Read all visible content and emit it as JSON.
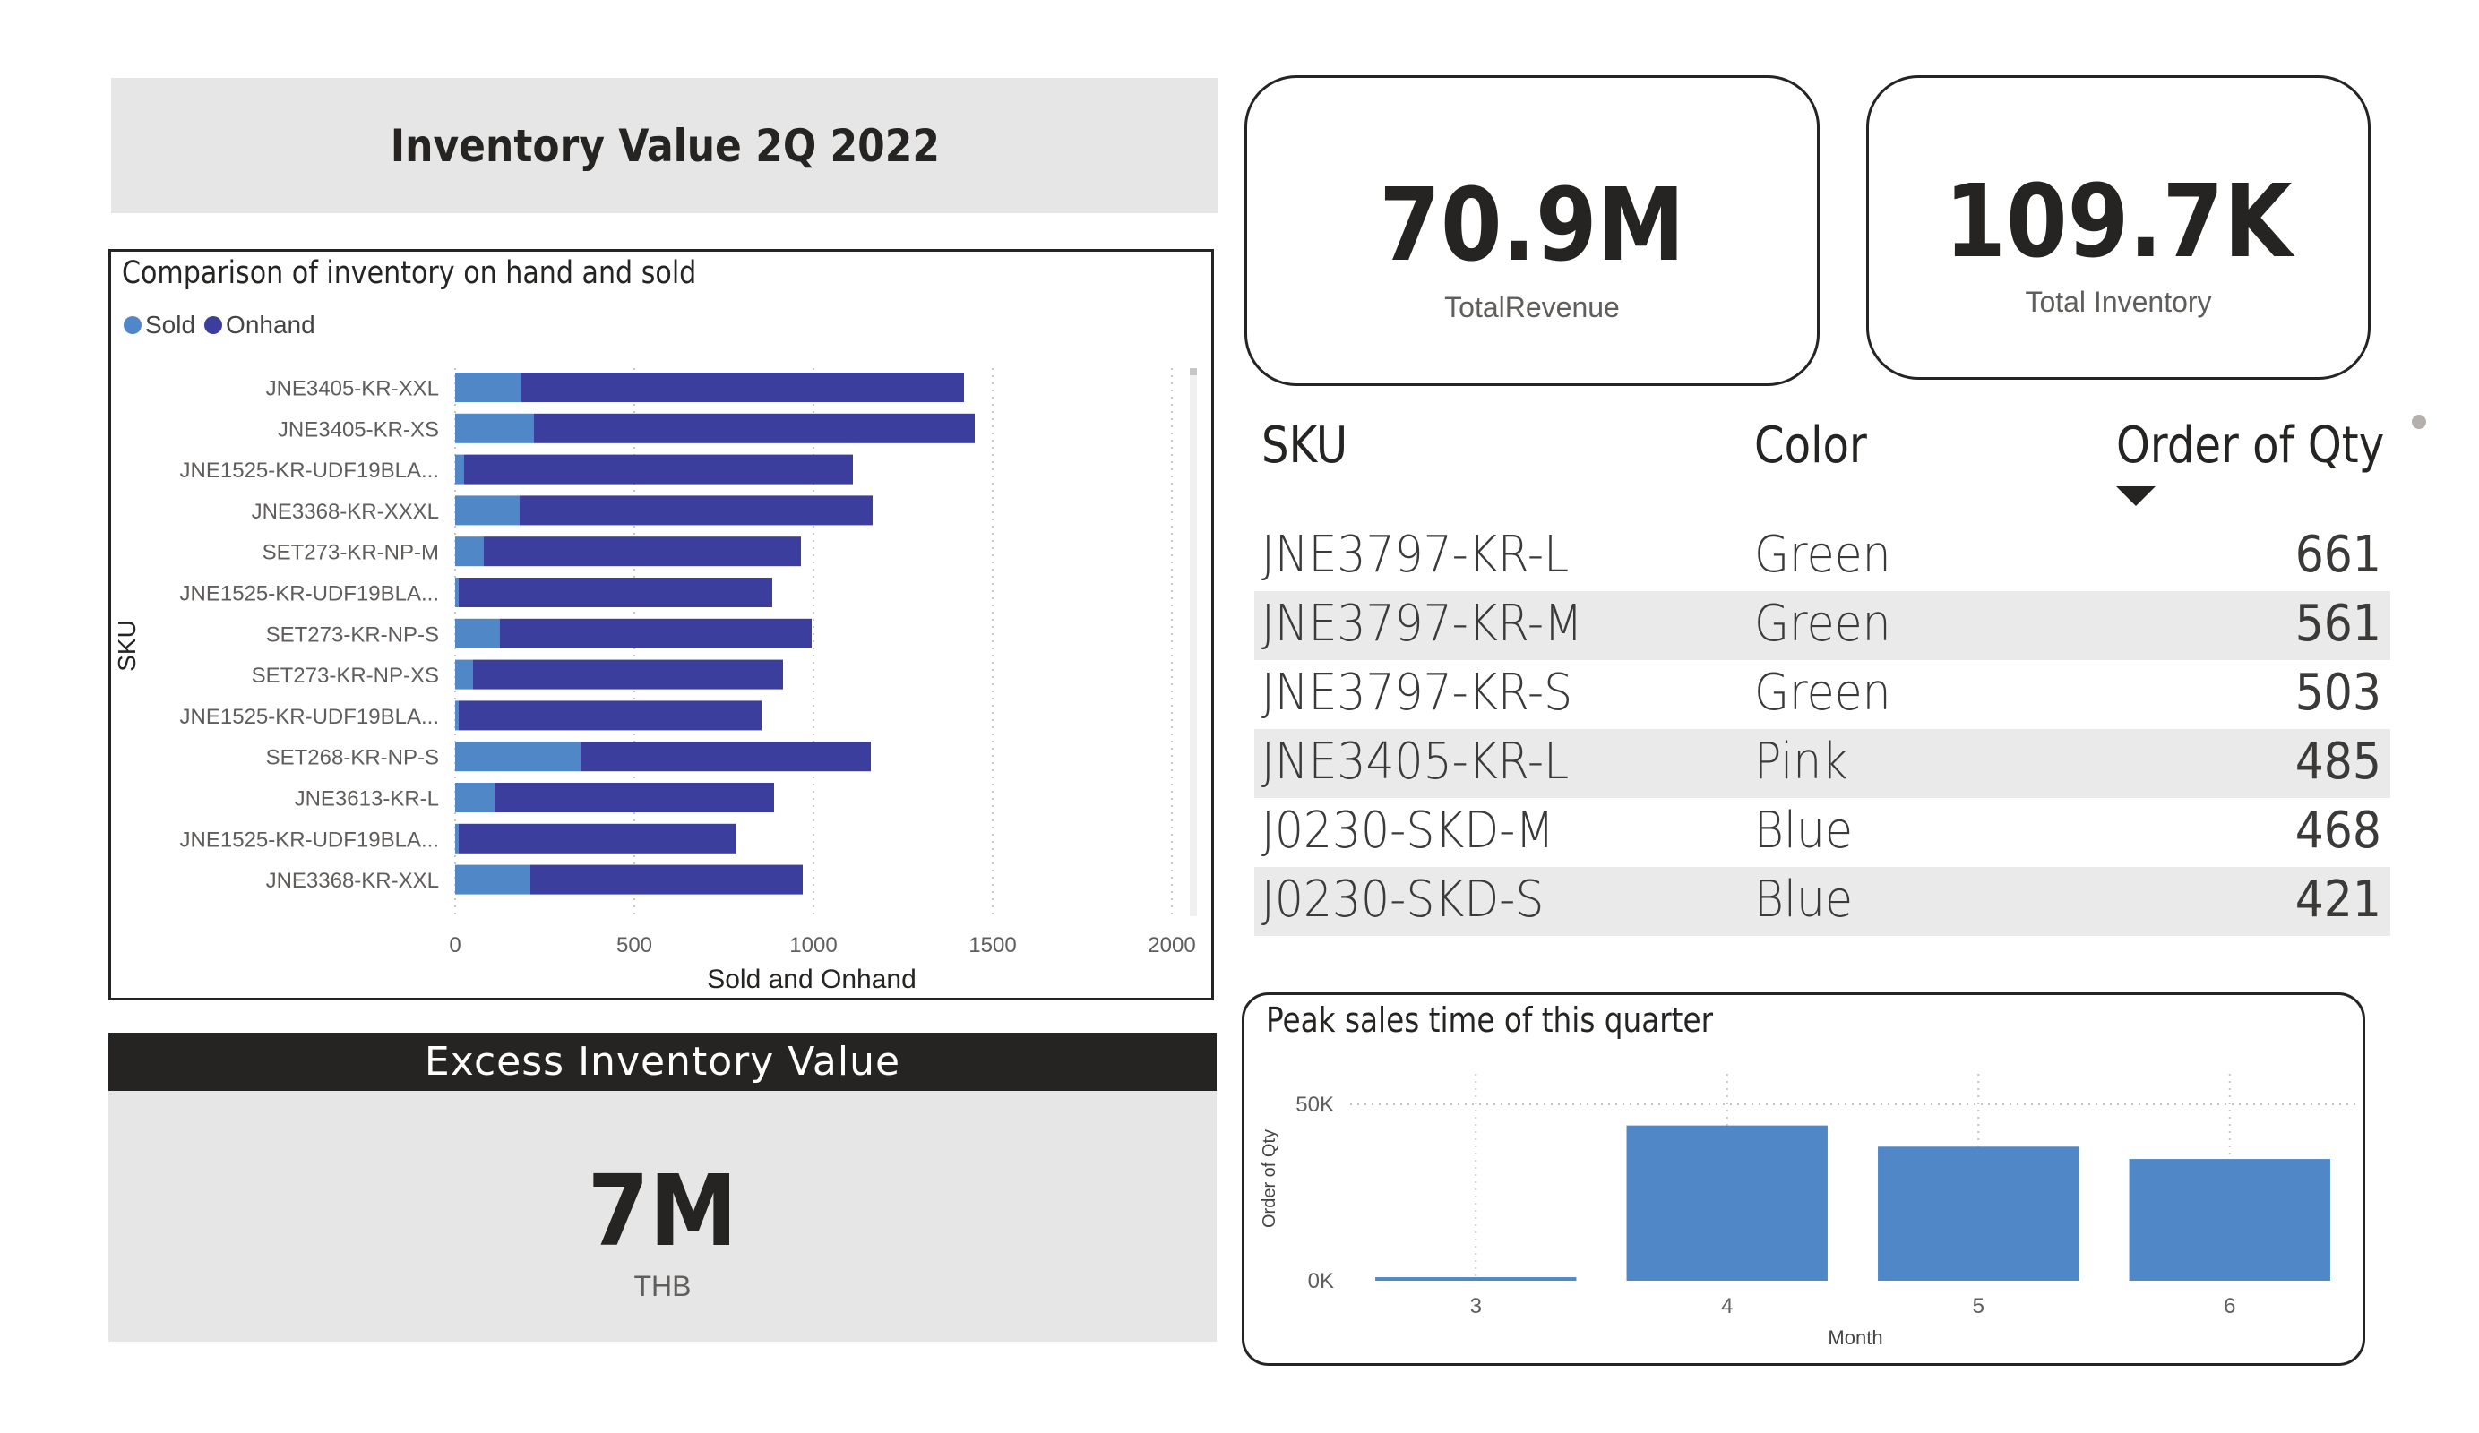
{
  "page_title": "Inventory Value 2Q 2022",
  "inventory_chart": {
    "title": "Comparison of inventory on hand and sold",
    "legend": [
      {
        "name": "Sold",
        "color": "#5087c7"
      },
      {
        "name": "Onhand",
        "color": "#3b3e9c"
      }
    ],
    "ylabel": "SKU",
    "xlabel": "Sold and Onhand",
    "x_ticks": [
      "0",
      "500",
      "1000",
      "1500",
      "2000"
    ]
  },
  "chart_data": [
    {
      "type": "bar",
      "orientation": "horizontal",
      "stacked": true,
      "title": "Comparison of inventory on hand and sold",
      "xlabel": "Sold and Onhand",
      "ylabel": "SKU",
      "xlim": [
        0,
        2000
      ],
      "legend_position": "top-left",
      "categories": [
        "JNE3405-KR-XXL",
        "JNE3405-KR-XS",
        "JNE1525-KR-UDF19BLA...",
        "JNE3368-KR-XXXL",
        "SET273-KR-NP-M",
        "JNE1525-KR-UDF19BLA...",
        "SET273-KR-NP-S",
        "SET273-KR-NP-XS",
        "JNE1525-KR-UDF19BLA...",
        "SET268-KR-NP-S",
        "JNE3613-KR-L",
        "JNE1525-KR-UDF19BLA...",
        "JNE3368-KR-XXL"
      ],
      "series": [
        {
          "name": "Sold",
          "color": "#5087c7",
          "values": [
            185,
            220,
            25,
            180,
            80,
            10,
            125,
            50,
            10,
            350,
            110,
            10,
            210
          ]
        },
        {
          "name": "Onhand",
          "color": "#3b3e9c",
          "values": [
            1235,
            1230,
            1085,
            985,
            885,
            875,
            870,
            865,
            845,
            810,
            780,
            775,
            760
          ]
        }
      ]
    },
    {
      "type": "bar",
      "title": "Peak sales time of this quarter",
      "xlabel": "Month",
      "ylabel": "Order of Qty",
      "categories": [
        "3",
        "4",
        "5",
        "6"
      ],
      "values": [
        1000,
        44000,
        38000,
        34500
      ],
      "ylim": [
        0,
        50000
      ],
      "y_ticks": [
        "0K",
        "50K"
      ],
      "color": "#5087c7"
    }
  ],
  "kpis": [
    {
      "value": "70.9M",
      "label": "TotalRevenue"
    },
    {
      "value": "109.7K",
      "label": "Total Inventory"
    }
  ],
  "sku_table": {
    "headers": {
      "sku": "SKU",
      "color": "Color",
      "qty": "Order of Qty"
    },
    "rows": [
      {
        "sku": "JNE3797-KR-L",
        "color": "Green",
        "qty": "661"
      },
      {
        "sku": "JNE3797-KR-M",
        "color": "Green",
        "qty": "561"
      },
      {
        "sku": "JNE3797-KR-S",
        "color": "Green",
        "qty": "503"
      },
      {
        "sku": "JNE3405-KR-L",
        "color": "Pink",
        "qty": "485"
      },
      {
        "sku": "J0230-SKD-M",
        "color": "Blue",
        "qty": "468"
      },
      {
        "sku": "J0230-SKD-S",
        "color": "Blue",
        "qty": "421"
      }
    ]
  },
  "excess": {
    "title": "Excess Inventory Value",
    "value": "7M",
    "unit": "THB"
  },
  "peak_chart": {
    "title": "Peak sales time of this quarter",
    "xlabel": "Month",
    "ylabel": "Order of Qty"
  }
}
